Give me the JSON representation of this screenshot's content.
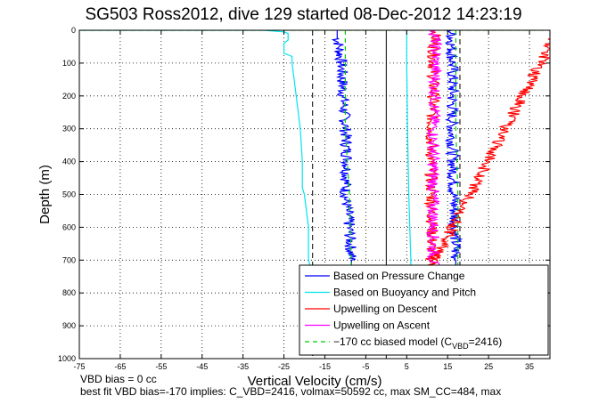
{
  "chart_data": {
    "type": "line",
    "title": "SG503 Ross2012, dive 129 started 08-Dec-2012 14:23:19",
    "xlabel": "Vertical Velocity (cm/s)",
    "ylabel": "Depth (m)",
    "xlim": [
      -75,
      40
    ],
    "ylim": [
      0,
      1000
    ],
    "y_reversed": true,
    "x_ticks": [
      "-75",
      "-65",
      "-55",
      "-45",
      "-35",
      "-25",
      "-15",
      "-5",
      "5",
      "15",
      "25",
      "35"
    ],
    "x_tick_values": [
      -75,
      -65,
      -55,
      -45,
      -35,
      -25,
      -15,
      -5,
      5,
      15,
      25,
      35
    ],
    "y_ticks": [
      "0",
      "100",
      "200",
      "300",
      "400",
      "500",
      "600",
      "700",
      "800",
      "900",
      "1000"
    ],
    "y_tick_values": [
      0,
      100,
      200,
      300,
      400,
      500,
      600,
      700,
      800,
      900,
      1000
    ],
    "grid": true,
    "legend_position": "bottom-right",
    "series": [
      {
        "name": "Based on Pressure Change",
        "color": "#0000ff",
        "style": "solid",
        "points": [
          [
            -12,
            0
          ],
          [
            -12,
            20
          ],
          [
            -11.5,
            50
          ],
          [
            -11,
            100
          ],
          [
            -10.5,
            200
          ],
          [
            -10,
            300
          ],
          [
            -9.5,
            400
          ],
          [
            -10,
            500
          ],
          [
            -9.5,
            550
          ],
          [
            -9,
            600
          ],
          [
            -8.5,
            700
          ],
          [
            -8.5,
            720
          ]
        ]
      },
      {
        "name": "Based on Pressure Change",
        "color": "#0000ff",
        "style": "solid",
        "points": [
          [
            16,
            0
          ],
          [
            16,
            50
          ],
          [
            16.2,
            100
          ],
          [
            16.2,
            200
          ],
          [
            16,
            300
          ],
          [
            16.3,
            400
          ],
          [
            16.5,
            500
          ],
          [
            16.8,
            600
          ],
          [
            17,
            700
          ],
          [
            17,
            720
          ]
        ]
      },
      {
        "name": "Based on Buoyancy and Pitch",
        "color": "#00e5ee",
        "style": "solid",
        "points": [
          [
            -88,
            0
          ],
          [
            -30,
            0
          ],
          [
            -25,
            5
          ],
          [
            -24,
            10
          ],
          [
            -24,
            30
          ],
          [
            -25,
            40
          ],
          [
            -25,
            70
          ],
          [
            -23,
            80
          ],
          [
            -23,
            100
          ],
          [
            -22,
            200
          ],
          [
            -21,
            300
          ],
          [
            -20.5,
            400
          ],
          [
            -20.5,
            480
          ],
          [
            -20,
            500
          ],
          [
            -19.5,
            550
          ],
          [
            -19,
            600
          ],
          [
            -19,
            700
          ],
          [
            -18.5,
            720
          ]
        ]
      },
      {
        "name": "Based on Buoyancy and Pitch",
        "color": "#00e5ee",
        "style": "solid",
        "points": [
          [
            5,
            0
          ],
          [
            5,
            100
          ],
          [
            5.2,
            300
          ],
          [
            5.5,
            500
          ],
          [
            6,
            700
          ],
          [
            6,
            720
          ]
        ]
      },
      {
        "name": "Upwelling on Descent",
        "color": "#ff0000",
        "style": "solid",
        "points": [
          [
            12,
            0
          ],
          [
            11.5,
            100
          ],
          [
            11.5,
            200
          ],
          [
            11,
            300
          ],
          [
            11,
            400
          ],
          [
            11,
            500
          ],
          [
            11.2,
            600
          ],
          [
            11,
            720
          ],
          [
            42,
            0
          ]
        ]
      },
      {
        "name": "Upwelling on Ascent",
        "color": "#ff00ff",
        "style": "solid",
        "points": [
          [
            12,
            0
          ],
          [
            12,
            100
          ],
          [
            12,
            200
          ],
          [
            11.5,
            300
          ],
          [
            11.5,
            400
          ],
          [
            11.5,
            500
          ],
          [
            11.5,
            600
          ],
          [
            11.5,
            720
          ]
        ]
      },
      {
        "name": "-170 cc biased model",
        "color": "#00cc00",
        "style": "dashed",
        "points": [
          [
            -88,
            0
          ],
          [
            42,
            0
          ]
        ]
      },
      {
        "name": "-170 cc biased model",
        "color": "#00cc00",
        "style": "dashed",
        "points": [
          [
            -10,
            0
          ],
          [
            -10,
            300
          ],
          [
            -9,
            500
          ],
          [
            -8.5,
            720
          ]
        ]
      },
      {
        "name": "-170 cc biased model",
        "color": "#00cc00",
        "style": "dashed",
        "points": [
          [
            17,
            0
          ],
          [
            17,
            300
          ],
          [
            17.5,
            500
          ],
          [
            17.5,
            720
          ]
        ]
      }
    ],
    "reference_lines": [
      {
        "x": -18,
        "color": "#000000",
        "style": "dashed"
      },
      {
        "x": 18,
        "color": "#000000",
        "style": "dashed"
      },
      {
        "x": 0,
        "color": "#000000",
        "style": "solid"
      }
    ],
    "legend": [
      {
        "label": "Based on Pressure Change",
        "color": "#0000ff",
        "style": "solid"
      },
      {
        "label": "Based on Buoyancy and Pitch",
        "color": "#00e5ee",
        "style": "solid"
      },
      {
        "label": "Upwelling on Descent",
        "color": "#ff0000",
        "style": "solid"
      },
      {
        "label": "Upwelling on Ascent",
        "color": "#ff00ff",
        "style": "solid"
      },
      {
        "label": "−170 cc biased model (C",
        "sub": "VBD",
        "suffix": "=2416)",
        "color": "#00cc00",
        "style": "dashed"
      }
    ],
    "annotations": [
      "VBD bias = 0 cc",
      "best fit VBD bias=-170 implies: C_VBD=2416, volmax=50592 cc, max SM_CC=484, max"
    ]
  }
}
